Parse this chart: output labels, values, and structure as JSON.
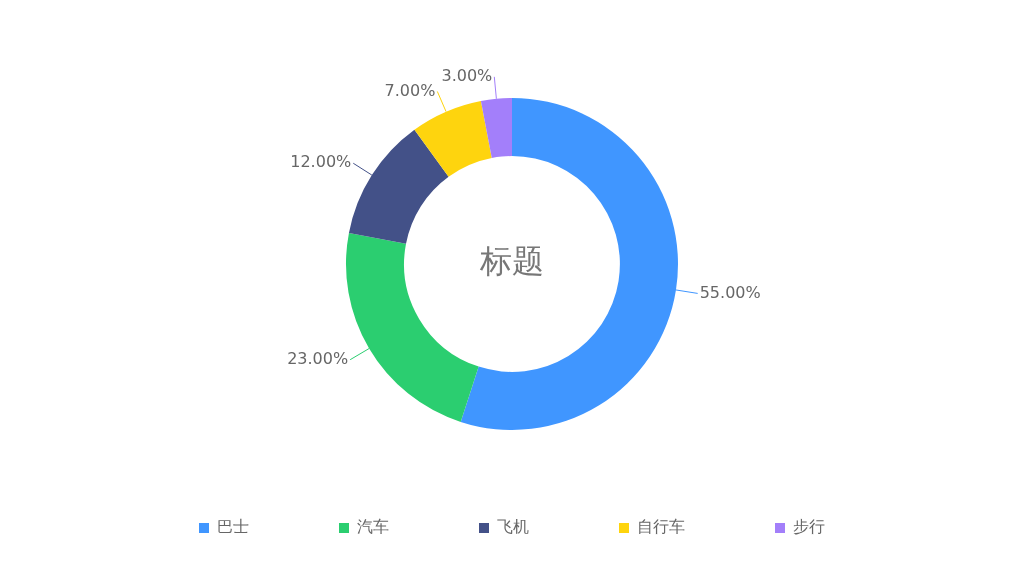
{
  "chart_data": {
    "type": "donut",
    "title": "标题",
    "categories": [
      "巴士",
      "汽车",
      "飞机",
      "自行车",
      "步行"
    ],
    "values": [
      55,
      23,
      12,
      7,
      3
    ],
    "colors": [
      "#4096ff",
      "#2bce70",
      "#435188",
      "#fed40e",
      "#a37ffa"
    ],
    "value_labels": [
      "55.00%",
      "23.00%",
      "12.00%",
      "7.00%",
      "3.00%"
    ],
    "legend": "bottom"
  }
}
